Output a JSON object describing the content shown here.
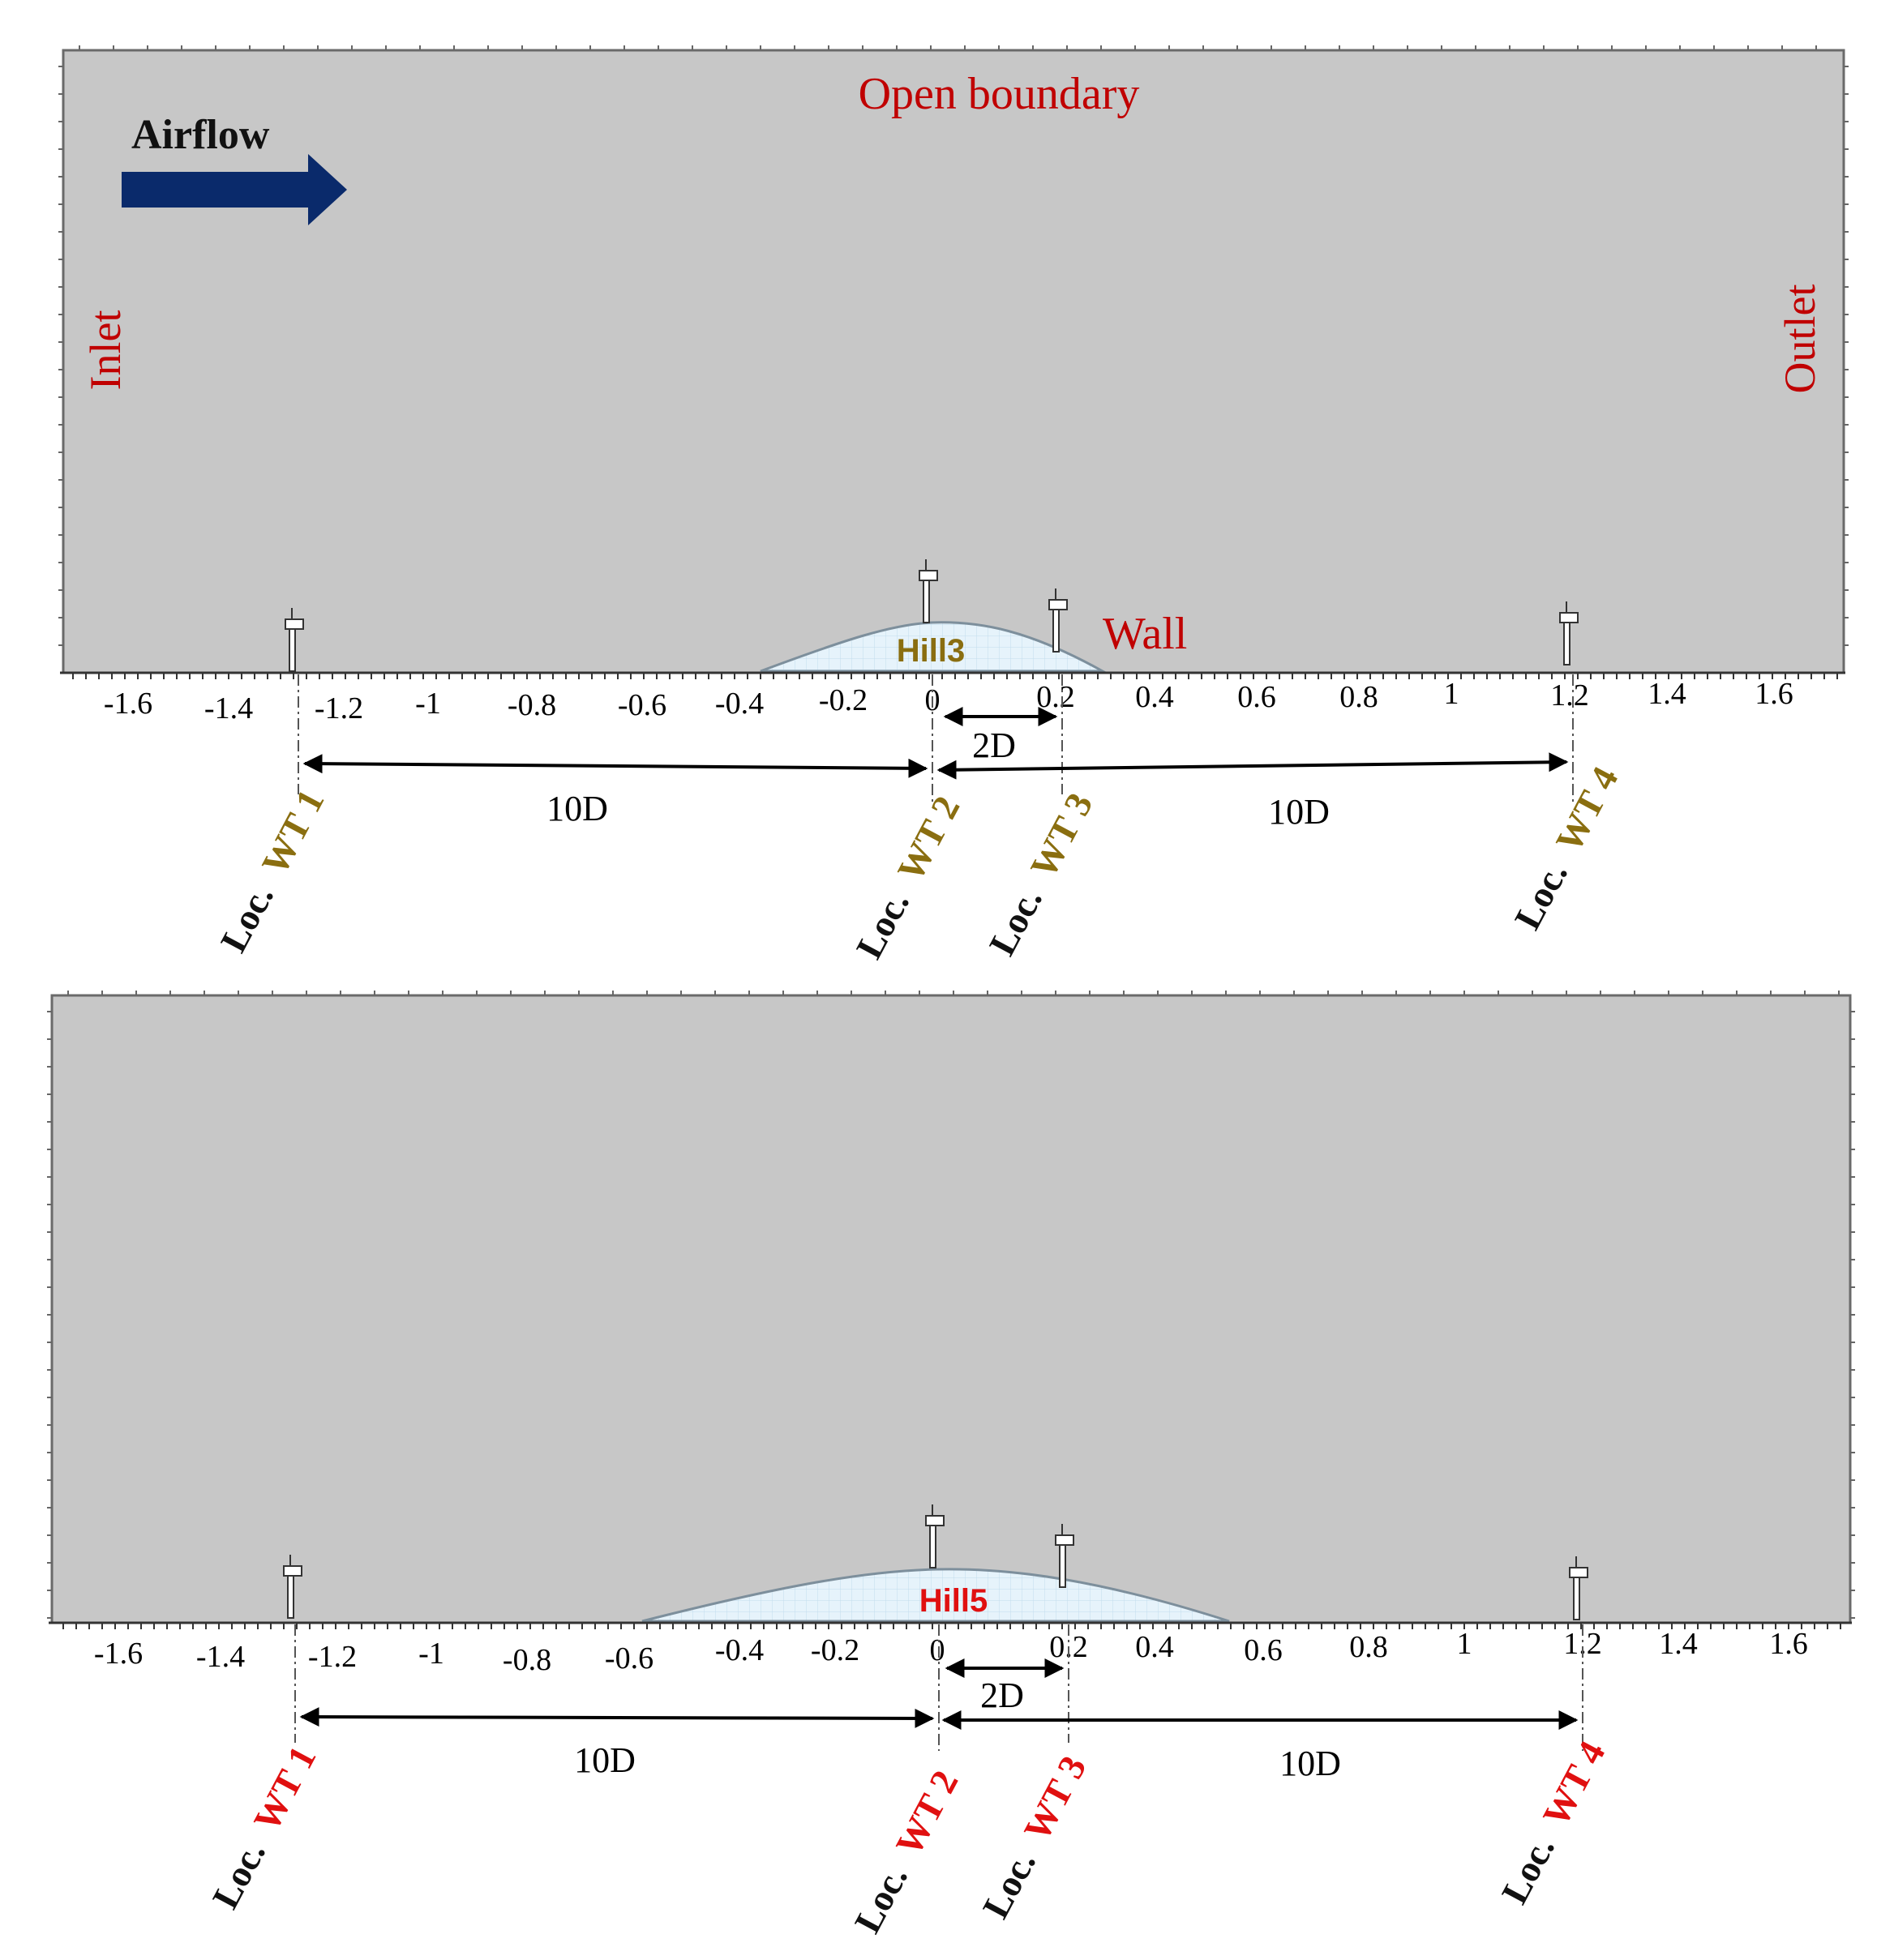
{
  "colors": {
    "domain_fill": "#c7c7c7",
    "frame": "#6a6a6a",
    "boundary_label": "#c00000",
    "arrow": "#0a2a6b",
    "hill_fill": "#e6f3fb",
    "hill_edge": "#7d8f9c",
    "hill3_label": "#8a6e10",
    "wt_label_top": "#8a6e10",
    "hill5_label": "#e01010",
    "wt_label_bottom": "#e01010",
    "dim_line": "#000000"
  },
  "top": {
    "open_boundary": "Open boundary",
    "airflow": "Airflow",
    "inlet": "Inlet",
    "outlet": "Outlet",
    "wall": "Wall",
    "hill": "Hill3",
    "ticks": [
      "-1.6",
      "-1.4",
      "-1.2",
      "-1",
      "-0.8",
      "-0.6",
      "-0.4",
      "-0.2",
      "0",
      "0.2",
      "0.4",
      "0.6",
      "0.8",
      "1",
      "1.2",
      "1.4",
      "1.6"
    ],
    "dim_10d_left": "10D",
    "dim_2d": "2D",
    "dim_10d_right": "10D",
    "loc_prefix": "Loc.",
    "wt_labels": [
      "WT 1",
      "WT 2",
      "WT 3",
      "WT 4"
    ]
  },
  "bottom": {
    "hill": "Hill5",
    "ticks": [
      "-1.6",
      "-1.4",
      "-1.2",
      "-1",
      "-0.8",
      "-0.6",
      "-0.4",
      "-0.2",
      "0",
      "0.2",
      "0.4",
      "0.6",
      "0.8",
      "1",
      "1.2",
      "1.4",
      "1.6"
    ],
    "dim_10d_left": "10D",
    "dim_2d": "2D",
    "dim_10d_right": "10D",
    "loc_prefix": "Loc.",
    "wt_labels": [
      "WT 1",
      "WT 2",
      "WT 3",
      "WT 4"
    ]
  }
}
